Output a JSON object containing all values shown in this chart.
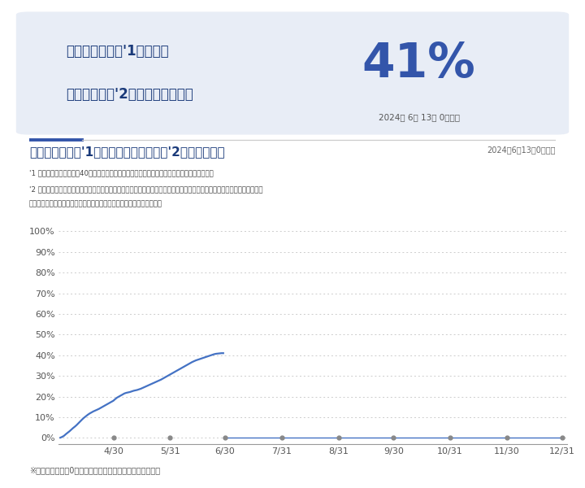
{
  "bg_color": "#ffffff",
  "card_bg": "#e8edf6",
  "title_text_line1": "撤去加算の予算'1に対する",
  "title_text_line2": "補助金申請額'2の割合（概算値）",
  "big_pct": "41",
  "big_pct_unit": "%",
  "big_pct_color": "#3355aa",
  "date_text": "2024年 6月 13日 0時時点",
  "section_title": "撤去加算の予算'1に対する補助金申請額'2の割合の推移",
  "section_date": "2024年6月13日0時時点",
  "note1": "'1 本加算措置は、予算額40億円を目途に凍結し、予算額に達し次第、終了を予定しています。",
  "note2": "'2 電気蓄熱暖房機または電気温水器の撤去による交付申請および交付申請の予約が提出された総額（審査中のものも含む）",
  "note3": "　　なお、審査等により却下または取り下げされたものはきみません。",
  "footer": "※公表は毎日午前0時時点の情報を当日午前中に行います。",
  "line_color": "#4472c4",
  "dot_color": "#888888",
  "grid_color": "#cccccc",
  "x_labels": [
    "4/30",
    "5/31",
    "6/30",
    "7/31",
    "8/31",
    "9/30",
    "10/31",
    "11/30",
    "12/31"
  ],
  "rising_x": [
    1,
    2,
    3,
    4,
    5,
    6,
    7,
    8,
    9,
    10,
    11,
    12,
    13,
    14,
    15,
    16,
    17,
    18,
    19,
    20,
    21,
    22,
    23,
    24,
    25,
    26,
    27,
    28,
    29,
    30,
    31,
    32,
    33,
    34,
    35,
    36,
    37,
    38,
    39,
    40,
    41,
    42,
    43,
    44,
    45,
    46,
    47,
    48,
    49,
    50,
    51,
    52,
    53,
    54,
    55,
    56,
    57,
    58,
    59,
    60,
    61,
    62,
    63,
    64,
    65,
    66,
    67,
    68,
    69,
    70,
    71,
    72,
    73,
    74,
    75,
    76,
    77,
    78,
    79,
    80,
    81,
    82,
    83,
    84,
    85,
    86,
    87,
    88,
    89,
    90
  ],
  "rising_y": [
    0.1,
    0.5,
    1.0,
    1.8,
    2.5,
    3.2,
    4.0,
    4.8,
    5.5,
    6.3,
    7.2,
    8.1,
    9.0,
    9.8,
    10.5,
    11.2,
    11.8,
    12.3,
    12.8,
    13.2,
    13.6,
    14.0,
    14.5,
    15.0,
    15.5,
    16.0,
    16.5,
    17.0,
    17.5,
    18.0,
    18.8,
    19.5,
    20.0,
    20.5,
    21.0,
    21.5,
    21.8,
    22.0,
    22.2,
    22.5,
    22.8,
    23.0,
    23.2,
    23.5,
    23.8,
    24.2,
    24.6,
    25.0,
    25.4,
    25.8,
    26.2,
    26.6,
    27.0,
    27.4,
    27.8,
    28.2,
    28.7,
    29.2,
    29.7,
    30.2,
    30.7,
    31.2,
    31.7,
    32.2,
    32.7,
    33.2,
    33.7,
    34.2,
    34.7,
    35.2,
    35.7,
    36.2,
    36.7,
    37.1,
    37.5,
    37.8,
    38.1,
    38.4,
    38.7,
    39.0,
    39.3,
    39.6,
    39.9,
    40.2,
    40.5,
    40.7,
    40.8,
    40.9,
    41.0,
    41.0
  ],
  "flat_x": [
    90,
    122,
    153,
    183,
    214,
    245,
    275
  ],
  "flat_y": [
    0,
    0,
    0,
    0,
    0,
    0,
    0
  ],
  "tick_x": [
    30,
    61,
    91,
    122,
    153,
    183,
    214,
    245,
    275
  ],
  "xlim": [
    0,
    278
  ],
  "ylim": [
    -3,
    108
  ]
}
